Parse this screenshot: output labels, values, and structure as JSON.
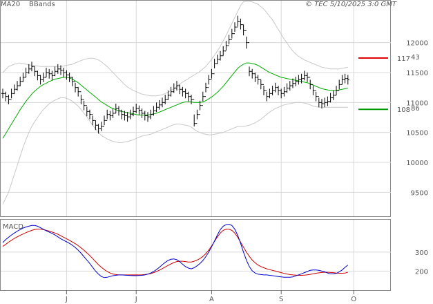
{
  "header": {
    "ma_legend": "MA20",
    "bbands_legend": "BBands",
    "copyright": "© TEC 5/10/2025 3:0 GMT"
  },
  "colors": {
    "price": "#000000",
    "ma20": "#00aa00",
    "bbands": "#c8c8c8",
    "grid": "#d8d8d8",
    "resistance": "#dd0000",
    "support": "#009900",
    "macd": "#0000cc",
    "signal": "#cc0000"
  },
  "chart_data": [
    {
      "type": "line",
      "subtype": "ohlc-bar",
      "ylim": [
        9100,
        12700
      ],
      "y_ticks": [
        9500,
        10000,
        10500,
        11000,
        11500,
        12000
      ],
      "y_tick_labels": [
        "9500",
        "10000",
        "10500",
        "11000",
        "11500",
        "12000"
      ],
      "x_labels": [
        "J",
        "J",
        "A",
        "S",
        "O"
      ],
      "x_label_index": [
        22,
        46,
        72,
        96,
        121
      ],
      "grid": true,
      "legend_placement": "top-left",
      "levels": [
        {
          "value": 11743,
          "label": "117",
          "label_sup": "43",
          "color": "#dd0000"
        },
        {
          "value": 10886,
          "label": "108",
          "label_sup": "86",
          "color": "#009900"
        }
      ],
      "close": [
        11150,
        11100,
        11050,
        11150,
        11220,
        11280,
        11350,
        11420,
        11500,
        11560,
        11600,
        11520,
        11450,
        11380,
        11420,
        11500,
        11480,
        11450,
        11520,
        11560,
        11540,
        11500,
        11460,
        11420,
        11350,
        11250,
        11180,
        11050,
        10950,
        10850,
        10800,
        10700,
        10620,
        10560,
        10600,
        10700,
        10800,
        10780,
        10820,
        10900,
        10860,
        10800,
        10780,
        10760,
        10800,
        10850,
        10900,
        10870,
        10820,
        10780,
        10760,
        10800,
        10860,
        10920,
        10960,
        11000,
        11050,
        11120,
        11180,
        11240,
        11280,
        11220,
        11180,
        11150,
        11100,
        11050,
        10650,
        10800,
        10950,
        11100,
        11250,
        11380,
        11480,
        11650,
        11720,
        11780,
        11860,
        11950,
        12050,
        12150,
        12260,
        12350,
        12300,
        12200,
        12000,
        11520,
        11480,
        11420,
        11380,
        11300,
        11200,
        11100,
        11150,
        11200,
        11250,
        11200,
        11150,
        11180,
        11240,
        11280,
        11320,
        11350,
        11380,
        11400,
        11450,
        11420,
        11300,
        11200,
        11100,
        11000,
        10980,
        11000,
        11020,
        11080,
        11120,
        11200,
        11300,
        11380,
        11400,
        11380
      ],
      "high": [
        11230,
        11180,
        11130,
        11230,
        11300,
        11360,
        11430,
        11500,
        11580,
        11640,
        11680,
        11600,
        11530,
        11460,
        11500,
        11580,
        11560,
        11530,
        11600,
        11640,
        11620,
        11580,
        11540,
        11500,
        11430,
        11330,
        11260,
        11130,
        11030,
        10930,
        10880,
        10780,
        10700,
        10640,
        10680,
        10780,
        10880,
        10860,
        10900,
        10980,
        10940,
        10880,
        10860,
        10840,
        10880,
        10930,
        10980,
        10950,
        10900,
        10860,
        10840,
        10880,
        10940,
        11000,
        11040,
        11080,
        11130,
        11200,
        11260,
        11320,
        11360,
        11300,
        11260,
        11230,
        11180,
        11130,
        10800,
        10880,
        11030,
        11180,
        11330,
        11460,
        11560,
        11730,
        11800,
        11860,
        11940,
        12030,
        12130,
        12230,
        12340,
        12450,
        12400,
        12300,
        12100,
        11600,
        11560,
        11500,
        11460,
        11380,
        11280,
        11180,
        11230,
        11280,
        11330,
        11280,
        11230,
        11260,
        11320,
        11360,
        11400,
        11430,
        11460,
        11480,
        11530,
        11500,
        11380,
        11280,
        11180,
        11080,
        11060,
        11080,
        11100,
        11160,
        11200,
        11280,
        11380,
        11460,
        11480,
        11460
      ],
      "low": [
        11070,
        11020,
        10970,
        11070,
        11140,
        11200,
        11270,
        11340,
        11420,
        11480,
        11520,
        11440,
        11370,
        11300,
        11340,
        11420,
        11400,
        11370,
        11440,
        11480,
        11460,
        11420,
        11380,
        11340,
        11270,
        11170,
        11100,
        10970,
        10870,
        10770,
        10720,
        10620,
        10540,
        10480,
        10520,
        10620,
        10720,
        10700,
        10740,
        10820,
        10780,
        10720,
        10700,
        10680,
        10720,
        10770,
        10820,
        10790,
        10740,
        10700,
        10680,
        10720,
        10780,
        10840,
        10880,
        10920,
        10970,
        11040,
        11100,
        11160,
        11200,
        11140,
        11100,
        11070,
        11020,
        10970,
        10600,
        10720,
        10870,
        11020,
        11170,
        11300,
        11400,
        11570,
        11640,
        11700,
        11780,
        11870,
        11970,
        12070,
        12180,
        12270,
        12220,
        12120,
        11900,
        11440,
        11400,
        11340,
        11300,
        11220,
        11120,
        11020,
        11070,
        11120,
        11170,
        11120,
        11070,
        11100,
        11160,
        11200,
        11240,
        11270,
        11300,
        11320,
        11370,
        11340,
        11220,
        11120,
        11020,
        10920,
        10900,
        10920,
        10940,
        11000,
        11040,
        11120,
        11220,
        11300,
        11320,
        11300
      ],
      "ma20": [
        10400,
        10480,
        10560,
        10640,
        10720,
        10800,
        10880,
        10950,
        11020,
        11080,
        11140,
        11190,
        11230,
        11270,
        11300,
        11320,
        11350,
        11370,
        11390,
        11400,
        11410,
        11420,
        11420,
        11410,
        11390,
        11360,
        11330,
        11290,
        11250,
        11210,
        11170,
        11130,
        11090,
        11050,
        11010,
        10980,
        10950,
        10920,
        10900,
        10880,
        10860,
        10850,
        10840,
        10830,
        10820,
        10810,
        10800,
        10790,
        10790,
        10790,
        10790,
        10800,
        10810,
        10820,
        10840,
        10860,
        10880,
        10900,
        10920,
        10940,
        10960,
        10980,
        11000,
        11010,
        11010,
        11010,
        11000,
        11000,
        11000,
        11010,
        11030,
        11060,
        11090,
        11130,
        11170,
        11220,
        11270,
        11330,
        11390,
        11450,
        11510,
        11570,
        11610,
        11640,
        11660,
        11660,
        11650,
        11640,
        11620,
        11590,
        11560,
        11530,
        11500,
        11480,
        11460,
        11440,
        11420,
        11410,
        11400,
        11390,
        11380,
        11370,
        11360,
        11350,
        11340,
        11330,
        11310,
        11290,
        11270,
        11250,
        11230,
        11220,
        11210,
        11200,
        11200,
        11200,
        11210,
        11220,
        11230,
        11240
      ],
      "bb_upper": [
        11500,
        11550,
        11600,
        11620,
        11640,
        11650,
        11660,
        11650,
        11640,
        11630,
        11620,
        11620,
        11610,
        11600,
        11600,
        11600,
        11600,
        11600,
        11600,
        11600,
        11600,
        11610,
        11620,
        11630,
        11640,
        11660,
        11680,
        11700,
        11720,
        11730,
        11740,
        11740,
        11730,
        11710,
        11680,
        11640,
        11600,
        11550,
        11500,
        11450,
        11400,
        11350,
        11300,
        11260,
        11230,
        11200,
        11180,
        11160,
        11140,
        11130,
        11120,
        11110,
        11110,
        11110,
        11120,
        11130,
        11150,
        11170,
        11200,
        11230,
        11270,
        11310,
        11340,
        11370,
        11400,
        11430,
        11460,
        11490,
        11520,
        11560,
        11600,
        11660,
        11720,
        11790,
        11860,
        11940,
        12030,
        12120,
        12220,
        12320,
        12420,
        12520,
        12620,
        12680,
        12690,
        12690,
        12680,
        12660,
        12640,
        12600,
        12560,
        12500,
        12440,
        12380,
        12300,
        12220,
        12140,
        12060,
        11990,
        11920,
        11860,
        11810,
        11770,
        11740,
        11710,
        11690,
        11670,
        11650,
        11630,
        11610,
        11590,
        11580,
        11570,
        11560,
        11560,
        11560,
        11560,
        11570,
        11580,
        11590
      ],
      "bb_lower": [
        9300,
        9400,
        9500,
        9650,
        9800,
        9950,
        10100,
        10250,
        10380,
        10500,
        10600,
        10680,
        10750,
        10820,
        10880,
        10930,
        10980,
        11010,
        11040,
        11060,
        11080,
        11080,
        11070,
        11050,
        11020,
        10980,
        10940,
        10880,
        10820,
        10760,
        10690,
        10620,
        10560,
        10500,
        10450,
        10420,
        10390,
        10370,
        10350,
        10340,
        10330,
        10330,
        10340,
        10350,
        10360,
        10380,
        10400,
        10420,
        10440,
        10450,
        10460,
        10470,
        10490,
        10510,
        10530,
        10550,
        10570,
        10590,
        10610,
        10630,
        10640,
        10640,
        10630,
        10620,
        10610,
        10590,
        10550,
        10520,
        10500,
        10480,
        10470,
        10460,
        10460,
        10470,
        10480,
        10490,
        10500,
        10520,
        10540,
        10560,
        10580,
        10600,
        10600,
        10600,
        10610,
        10620,
        10640,
        10660,
        10690,
        10720,
        10760,
        10800,
        10840,
        10870,
        10900,
        10920,
        10940,
        10960,
        10970,
        10980,
        10990,
        11000,
        11000,
        11000,
        10990,
        10980,
        10960,
        10940,
        10930,
        10920,
        10920,
        10920,
        10920,
        10920,
        10920,
        10920,
        10920,
        10920,
        10920,
        10920
      ]
    },
    {
      "type": "line",
      "title": "MACD",
      "ylim": [
        100,
        470
      ],
      "y_ticks": [
        200,
        300
      ],
      "y_tick_labels": [
        "200",
        "300"
      ],
      "grid": true,
      "series": [
        {
          "name": "",
          "values": [
            350,
            365,
            378,
            390,
            400,
            410,
            418,
            426,
            432,
            436,
            440,
            440,
            436,
            428,
            420,
            412,
            405,
            398,
            390,
            380,
            370,
            362,
            354,
            346,
            336,
            324,
            310,
            294,
            276,
            258,
            240,
            220,
            200,
            184,
            172,
            166,
            168,
            172,
            176,
            178,
            180,
            180,
            179,
            178,
            177,
            176,
            176,
            177,
            178,
            180,
            184,
            190,
            198,
            208,
            220,
            234,
            246,
            256,
            262,
            264,
            260,
            250,
            236,
            224,
            216,
            212,
            218,
            228,
            240,
            256,
            276,
            300,
            328,
            358,
            390,
            418,
            436,
            444,
            446,
            440,
            420,
            388,
            346,
            300,
            258,
            224,
            202,
            190,
            184,
            182,
            180,
            180,
            178,
            176,
            174,
            172,
            170,
            168,
            168,
            168,
            170,
            175,
            180,
            186,
            192,
            198,
            204,
            206,
            206,
            204,
            200,
            196,
            190,
            186,
            186,
            188,
            196,
            206,
            220,
            232
          ]
        },
        {
          "name": "",
          "values": [
            330,
            340,
            352,
            362,
            372,
            380,
            388,
            395,
            402,
            408,
            414,
            418,
            420,
            420,
            418,
            414,
            410,
            405,
            400,
            394,
            386,
            378,
            370,
            362,
            353,
            344,
            334,
            322,
            310,
            296,
            282,
            266,
            250,
            234,
            220,
            208,
            198,
            190,
            185,
            182,
            180,
            180,
            180,
            180,
            180,
            180,
            180,
            180,
            181,
            182,
            184,
            187,
            192,
            198,
            205,
            213,
            222,
            230,
            238,
            245,
            250,
            252,
            252,
            250,
            248,
            248,
            252,
            258,
            266,
            277,
            292,
            310,
            332,
            356,
            380,
            400,
            414,
            420,
            420,
            414,
            400,
            378,
            352,
            326,
            300,
            278,
            258,
            244,
            232,
            224,
            218,
            212,
            208,
            204,
            200,
            196,
            192,
            188,
            185,
            182,
            180,
            179,
            178,
            178,
            179,
            181,
            183,
            186,
            189,
            191,
            193,
            194,
            194,
            193,
            192,
            190,
            189,
            189,
            190,
            194
          ]
        }
      ]
    }
  ]
}
